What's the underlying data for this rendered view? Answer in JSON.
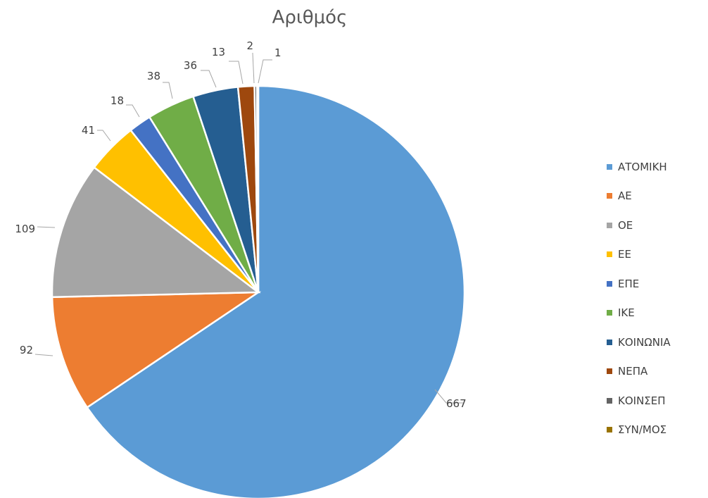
{
  "chart_data": {
    "type": "pie",
    "title": "Αριθμός",
    "categories": [
      "ΑΤΟΜΙΚΗ",
      "ΑΕ",
      "ΟΕ",
      "ΕΕ",
      "ΕΠΕ",
      "ΙΚΕ",
      "ΚΟΙΝΩΝΙΑ",
      "ΝΕΠΑ",
      "ΚΟΙΝΣΕΠ",
      "ΣΥΝ/ΜΟΣ"
    ],
    "values": [
      667,
      92,
      109,
      41,
      18,
      38,
      36,
      13,
      2,
      1
    ],
    "colors": [
      "#5B9BD5",
      "#ED7D31",
      "#A5A5A5",
      "#FFC000",
      "#4472C4",
      "#70AD47",
      "#255E91",
      "#9E480E",
      "#636363",
      "#997300"
    ],
    "legend_position": "right"
  }
}
